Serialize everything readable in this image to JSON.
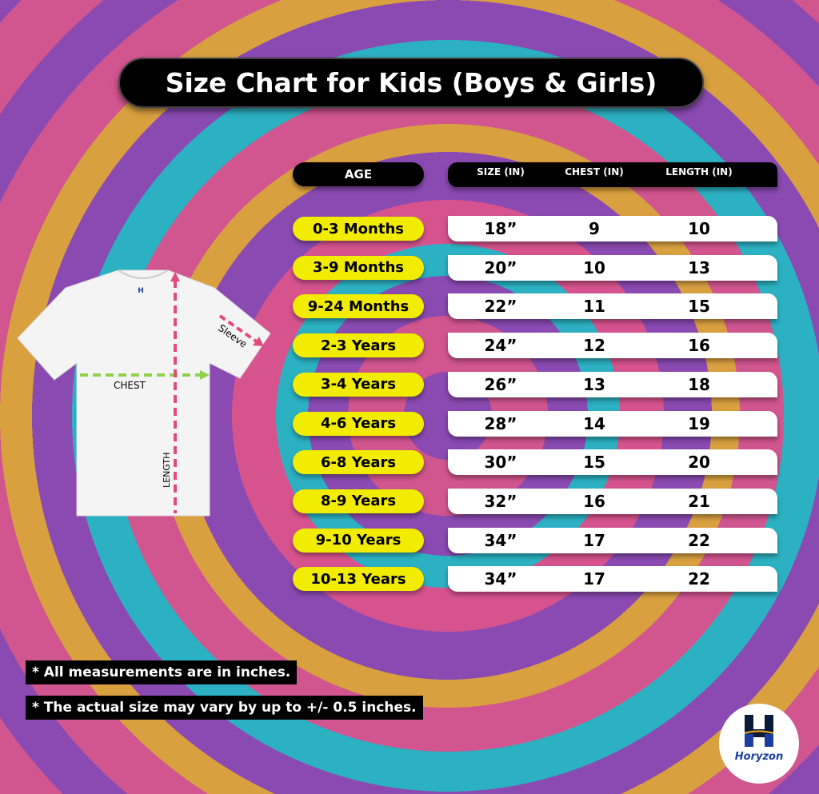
{
  "title": "Size Chart for Kids (Boys & Girls)",
  "headers": {
    "age": "AGE",
    "size": "SIZE (IN)",
    "chest": "CHEST (IN)",
    "length": "LENGTH (IN)"
  },
  "rows": [
    {
      "age": "0-3 Months",
      "size": "18”",
      "chest": "9",
      "length": "10"
    },
    {
      "age": "3-9 Months",
      "size": "20”",
      "chest": "10",
      "length": "13"
    },
    {
      "age": "9-24 Months",
      "size": "22”",
      "chest": "11",
      "length": "15"
    },
    {
      "age": "2-3 Years",
      "size": "24”",
      "chest": "12",
      "length": "16"
    },
    {
      "age": "3-4 Years",
      "size": "26”",
      "chest": "13",
      "length": "18"
    },
    {
      "age": "4-6 Years",
      "size": "28”",
      "chest": "14",
      "length": "19"
    },
    {
      "age": "6-8 Years",
      "size": "30”",
      "chest": "15",
      "length": "20"
    },
    {
      "age": "8-9 Years",
      "size": "32”",
      "chest": "16",
      "length": "21"
    },
    {
      "age": "9-10 Years",
      "size": "34”",
      "chest": "17",
      "length": "22"
    },
    {
      "age": "10-13 Years",
      "size": "34”",
      "chest": "17",
      "length": "22"
    }
  ],
  "diagram": {
    "chest": "CHEST",
    "length": "LENGTH",
    "sleeve": "Sleeve",
    "tag": "H"
  },
  "notes": [
    "* All measurements are in inches.",
    "* The actual size may vary by up to +/- 0.5 inches."
  ],
  "logo": {
    "text": "Horyzon",
    "colors": {
      "blue": "#1b3fa0",
      "gold": "#f0b020",
      "navy": "#0c1a3a"
    }
  },
  "colors": {
    "pill": "#f2ec00",
    "pink": "#d1558f",
    "purple": "#8a4ab2",
    "teal": "#2cb1c2",
    "orange": "#d9a040"
  }
}
